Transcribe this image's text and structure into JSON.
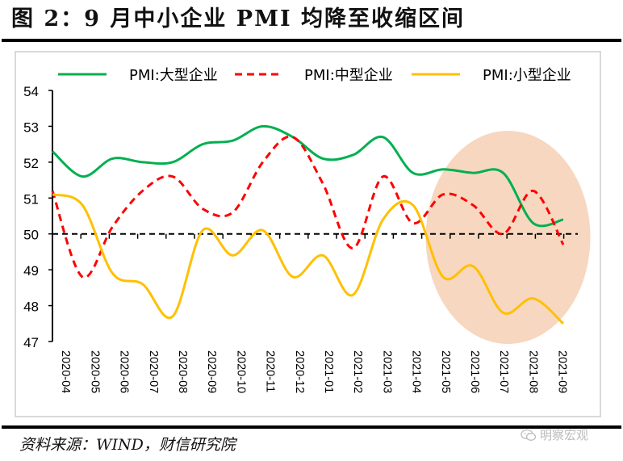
{
  "header": {
    "title": "图 2：9 月中小企业 PMI 均降至收缩区间"
  },
  "footer": {
    "source": "资料来源：WIND，财信研究院",
    "watermark": "明察宏观",
    "watermark_icon": "wechat-icon"
  },
  "colors": {
    "large": "#00b050",
    "medium": "#ff0000",
    "small": "#ffc000",
    "highlight": "#f7d7c0",
    "reference": "#000000"
  },
  "chart_data": {
    "type": "line",
    "title": "9月中小企业PMI均降至收缩区间",
    "xlabel": "",
    "ylabel": "",
    "ylim": [
      47,
      54
    ],
    "yticks": [
      47,
      48,
      49,
      50,
      51,
      52,
      53,
      54
    ],
    "grid": false,
    "legend_position": "top",
    "x_axis_crosses_at": 50,
    "reference_line": {
      "value": 50,
      "style": "dashed"
    },
    "highlight": {
      "shape": "ellipse",
      "from": "2021-05",
      "to": "2021-09"
    },
    "categories": [
      "2020-04",
      "2020-05",
      "2020-06",
      "2020-07",
      "2020-08",
      "2020-09",
      "2020-10",
      "2020-11",
      "2020-12",
      "2021-01",
      "2021-02",
      "2021-03",
      "2021-04",
      "2021-05",
      "2021-06",
      "2021-07",
      "2021-08",
      "2021-09"
    ],
    "series": [
      {
        "name": "PMI:大型企业",
        "key": "large",
        "style": "solid",
        "values": [
          52.3,
          51.6,
          52.1,
          52.0,
          52.0,
          52.5,
          52.6,
          53.0,
          52.7,
          52.1,
          52.2,
          52.7,
          51.7,
          51.8,
          51.7,
          51.7,
          50.3,
          50.4
        ]
      },
      {
        "name": "PMI:中型企业",
        "key": "medium",
        "style": "dashed",
        "values": [
          51.2,
          48.8,
          50.2,
          51.2,
          51.6,
          50.7,
          50.6,
          52.0,
          52.7,
          51.4,
          49.6,
          51.6,
          50.3,
          51.1,
          50.8,
          50.0,
          51.2,
          49.7
        ]
      },
      {
        "name": "PMI:小型企业",
        "key": "small",
        "style": "solid",
        "values": [
          51.1,
          50.8,
          48.9,
          48.6,
          47.7,
          50.1,
          49.4,
          50.1,
          48.8,
          49.4,
          48.3,
          50.4,
          50.8,
          48.8,
          49.1,
          47.8,
          48.2,
          47.5
        ]
      }
    ]
  }
}
